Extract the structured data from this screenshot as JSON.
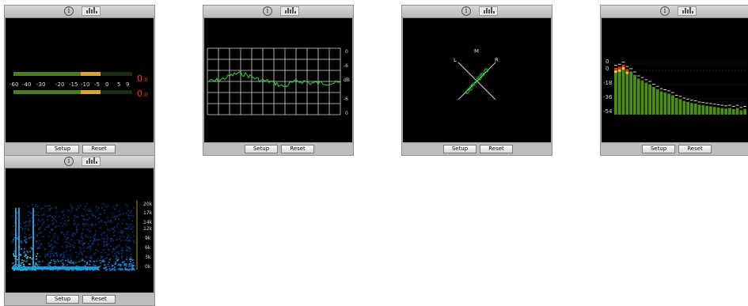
{
  "panels": {
    "common": {
      "info_glyph": "i",
      "info_icon": "info-circle-icon",
      "display_icon": "bars-display-icon",
      "setup_label": "Setup",
      "reset_label": "Reset"
    },
    "level_meter": {
      "scale": [
        "-60",
        "-40",
        "-30",
        "-20",
        "-15",
        "-10",
        "-5",
        "0",
        "5",
        "9"
      ],
      "peak_left": "0",
      "peak_left_dec": ".0",
      "peak_right": "0",
      "peak_right_dec": ".0",
      "peak_color": "#ff3b2f",
      "meter_left_fill": 0.72,
      "meter_right_fill": 0.72
    },
    "spectrum_curve": {
      "labels": [
        "0",
        "-6",
        "dB",
        "-6",
        "0"
      ]
    },
    "stereo_scope": {
      "label_l": "L",
      "label_m": "M",
      "label_r": "R"
    },
    "multiband_meter": {
      "scale": [
        "0",
        "0",
        "-18",
        "-36",
        "-54"
      ],
      "bar_levels": [
        0.84,
        0.86,
        0.9,
        0.82,
        0.78,
        0.72,
        0.65,
        0.62,
        0.58,
        0.55,
        0.5,
        0.46,
        0.42,
        0.4,
        0.38,
        0.35,
        0.3,
        0.28,
        0.25,
        0.23,
        0.21,
        0.2,
        0.18,
        0.17,
        0.16,
        0.15,
        0.14,
        0.13,
        0.12,
        0.11,
        0.12,
        0.1,
        0.12,
        0.08,
        0.1
      ],
      "bar_color": "#4c8c1a",
      "warn_color": "#f2c12e",
      "clip_color": "#e02b2b"
    },
    "spectrogram": {
      "freq_labels": [
        "20k",
        "17k",
        "14k",
        "12k",
        "9k",
        "6k",
        "3k",
        "0k"
      ]
    }
  }
}
